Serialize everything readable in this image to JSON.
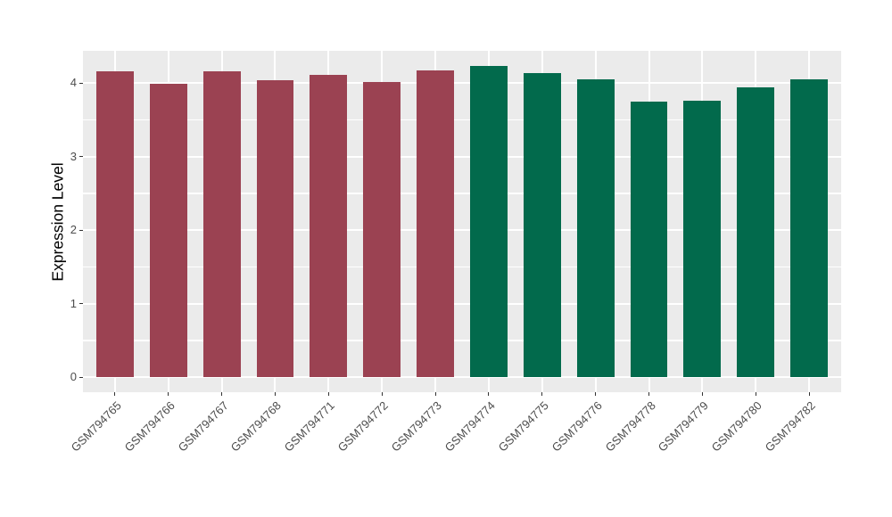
{
  "figure": {
    "background": "#FFFFFF",
    "panel_background": "#EBEBEB",
    "grid_color": "#FFFFFF",
    "tick_mark_color": "#333333",
    "tick_label_color": "#4D4D4D",
    "axis_title_color": "#000000"
  },
  "chart_data": {
    "type": "bar",
    "ylabel": "Expression Level",
    "categories": [
      "GSM794765",
      "GSM794766",
      "GSM794767",
      "GSM794768",
      "GSM794771",
      "GSM794772",
      "GSM794773",
      "GSM794774",
      "GSM794775",
      "GSM794776",
      "GSM794778",
      "GSM794779",
      "GSM794780",
      "GSM794782"
    ],
    "values": [
      4.16,
      3.99,
      4.16,
      4.04,
      4.11,
      4.02,
      4.18,
      4.23,
      4.14,
      4.05,
      3.75,
      3.76,
      3.94,
      4.05
    ],
    "groups": [
      "red",
      "red",
      "red",
      "red",
      "red",
      "red",
      "red",
      "green",
      "green",
      "green",
      "green",
      "green",
      "green",
      "green"
    ],
    "group_colors": {
      "red": "#9B4252",
      "green": "#026A4C"
    },
    "y_ticks": [
      0,
      1,
      2,
      3,
      4
    ],
    "y_minor_ticks": [
      0.5,
      1.5,
      2.5,
      3.5
    ],
    "ylim": [
      0,
      4.44
    ],
    "grid": true,
    "legend": "none"
  }
}
